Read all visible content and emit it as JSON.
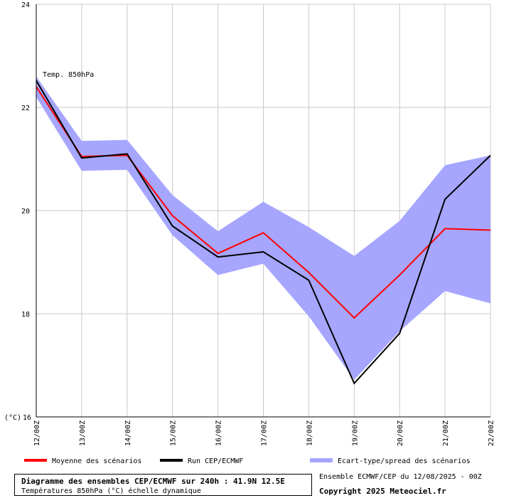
{
  "chart_data": {
    "type": "line",
    "title": "Diagramme des ensembles CEP/ECMWF sur 240h : 41.9N 12.5E",
    "subtitle": "Températures 850hPa (°C) échelle dynamique",
    "series_label": "Temp. 850hPa",
    "ylabel": "(°C)",
    "ylim": [
      16,
      24
    ],
    "yticks": [
      16,
      18,
      20,
      22,
      24
    ],
    "grid": true,
    "legend_position": "bottom",
    "x": [
      "12/00Z",
      "13/00Z",
      "14/00Z",
      "15/00Z",
      "16/00Z",
      "17/00Z",
      "18/00Z",
      "19/00Z",
      "20/00Z",
      "21/00Z",
      "22/00Z"
    ],
    "series": [
      {
        "name": "Moyenne des scénarios",
        "color": "#ff0000",
        "values": [
          22.4,
          21.05,
          21.07,
          19.9,
          19.17,
          19.57,
          18.8,
          17.92,
          18.75,
          19.65,
          19.62
        ]
      },
      {
        "name": "Run CEP/ECMWF",
        "color": "#000000",
        "values": [
          22.52,
          21.02,
          21.1,
          19.7,
          19.1,
          19.2,
          18.65,
          16.65,
          17.62,
          20.22,
          21.07
        ]
      }
    ],
    "spread": {
      "name": "Ecart-type/spread des scénarios",
      "color": "#a6a6ff",
      "upper": [
        22.6,
        21.35,
        21.37,
        20.3,
        19.6,
        20.17,
        19.68,
        19.12,
        19.8,
        20.88,
        21.07
      ],
      "lower": [
        22.2,
        20.77,
        20.79,
        19.52,
        18.75,
        18.97,
        17.95,
        16.72,
        17.66,
        18.44,
        18.2
      ]
    }
  },
  "footer": {
    "title": "Diagramme des ensembles CEP/ECMWF sur 240h : 41.9N 12.5E",
    "subtitle": "Températures 850hPa (°C) échelle dynamique",
    "run_info": "Ensemble ECMWF/CEP du 12/08/2025 - 00Z",
    "copyright": "Copyright 2025 Meteociel.fr"
  }
}
